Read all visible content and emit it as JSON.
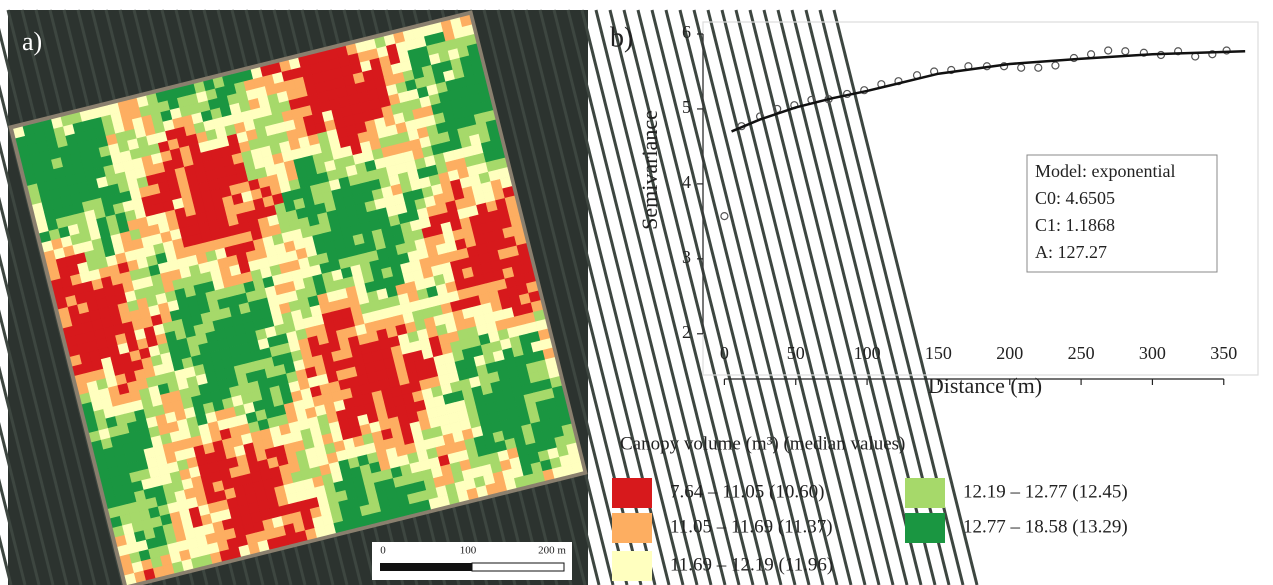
{
  "panel_a": {
    "label": "a)",
    "scale_bar": {
      "ticks": [
        "0",
        "100",
        "200 m"
      ]
    },
    "legend": {
      "title": "Canopy volume (m³) (median values)",
      "classes": [
        {
          "label": "7.64 – 11.05 (10.60)",
          "color": "#d7191c"
        },
        {
          "label": "11.05 – 11.69 (11.37)",
          "color": "#fdae61"
        },
        {
          "label": "11.69 – 12.19 (11.96)",
          "color": "#ffffbf"
        },
        {
          "label": "12.19 – 12.77 (12.45)",
          "color": "#a6d96a"
        },
        {
          "label": "12.77 – 18.58 (13.29)",
          "color": "#1a9641"
        }
      ]
    }
  },
  "chart_data": {
    "type": "scatter",
    "panel_label": "b)",
    "xlabel": "Distance (m)",
    "ylabel": "Semivariance",
    "xlim": [
      -15,
      374
    ],
    "ylim": [
      1.45,
      6.16
    ],
    "xticks": [
      0,
      50,
      100,
      150,
      200,
      250,
      300,
      350
    ],
    "yticks": [
      2,
      3,
      4,
      5,
      6
    ],
    "annotations": [
      "Model: exponential",
      "C0: 4.6505",
      "C1: 1.1868",
      "A:   127.27"
    ],
    "series": [
      {
        "type": "scatter",
        "color": "#555555",
        "x": [
          0,
          12,
          25,
          37,
          49,
          61,
          73,
          86,
          98,
          110,
          122,
          135,
          147,
          159,
          171,
          184,
          196,
          208,
          220,
          232,
          245,
          257,
          269,
          281,
          294,
          306,
          318,
          330,
          342,
          352
        ],
        "values": [
          3.57,
          4.77,
          4.9,
          5.0,
          5.05,
          5.12,
          5.13,
          5.2,
          5.25,
          5.33,
          5.37,
          5.45,
          5.5,
          5.52,
          5.57,
          5.57,
          5.57,
          5.55,
          5.55,
          5.58,
          5.68,
          5.73,
          5.78,
          5.77,
          5.75,
          5.72,
          5.77,
          5.7,
          5.73,
          5.78
        ]
      },
      {
        "type": "line",
        "color": "#111111",
        "x": [
          5,
          25,
          50,
          75,
          100,
          150,
          200,
          250,
          300,
          365
        ],
        "values": [
          4.7,
          4.86,
          5.02,
          5.14,
          5.24,
          5.47,
          5.6,
          5.67,
          5.73,
          5.77
        ]
      }
    ]
  }
}
